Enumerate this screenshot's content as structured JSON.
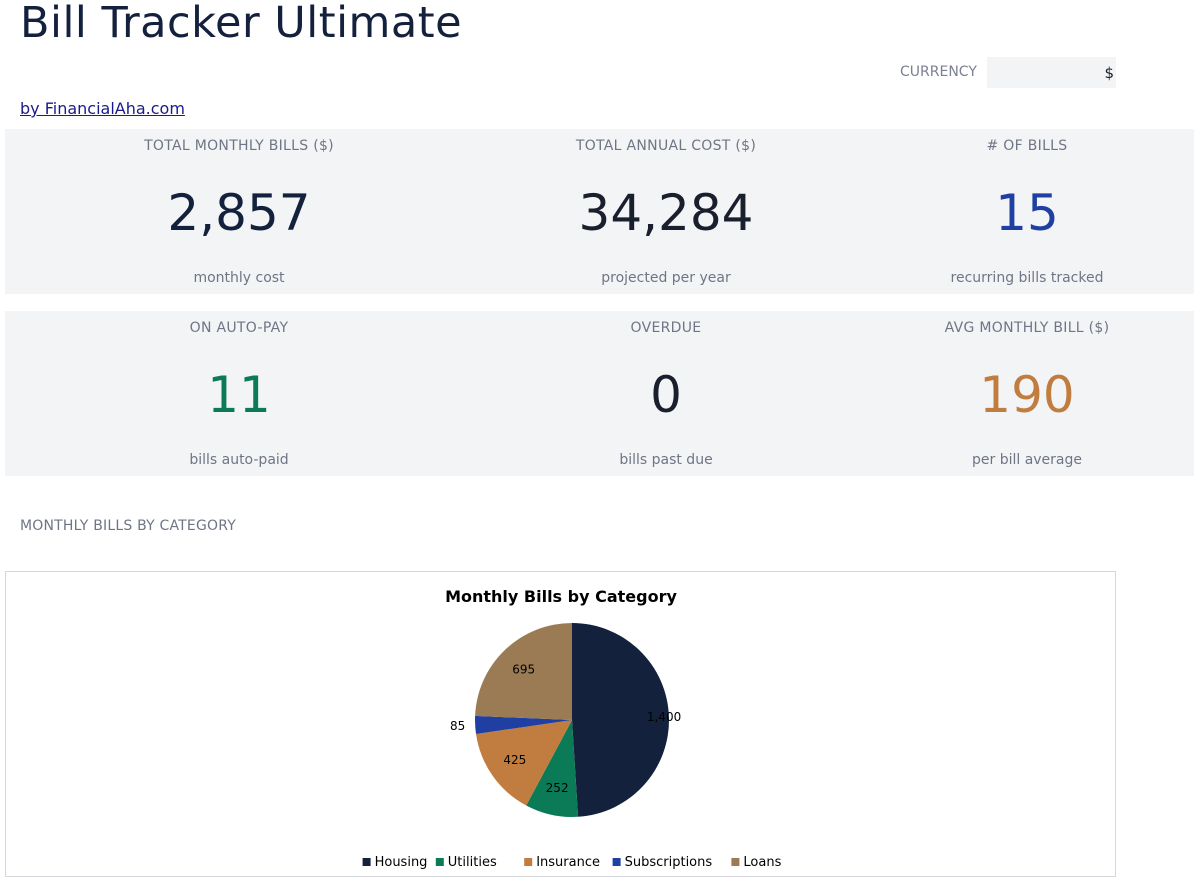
{
  "header": {
    "title": "Bill Tracker Ultimate",
    "byline": "by FinancialAha.com"
  },
  "currency": {
    "label": "CURRENCY",
    "value": "$"
  },
  "kpis": {
    "total_monthly": {
      "label": "TOTAL MONTHLY BILLS ($)",
      "value": "2,857",
      "sub": "monthly cost",
      "color": "#14213d"
    },
    "total_annual": {
      "label": "TOTAL ANNUAL COST ($)",
      "value": "34,284",
      "sub": "projected per year",
      "color": "#1a1f2e"
    },
    "num_bills": {
      "label": "# OF BILLS",
      "value": "15",
      "sub": "recurring bills tracked",
      "color": "#1f3fa3"
    },
    "auto_pay": {
      "label": "ON AUTO-PAY",
      "value": "11",
      "sub": "bills auto-paid",
      "color": "#0b7a57"
    },
    "overdue": {
      "label": "OVERDUE",
      "value": "0",
      "sub": "bills past due",
      "color": "#1a1f2e"
    },
    "avg_bill": {
      "label": "AVG MONTHLY BILL ($)",
      "value": "190",
      "sub": "per bill average",
      "color": "#c07d3f"
    }
  },
  "section": {
    "label": "MONTHLY BILLS BY CATEGORY"
  },
  "chart_data": {
    "type": "pie",
    "title": "Monthly Bills by Category",
    "categories": [
      "Housing",
      "Utilities",
      "Insurance",
      "Subscriptions",
      "Loans"
    ],
    "values": [
      1400,
      252,
      425,
      85,
      695
    ],
    "value_labels": [
      "1,400",
      "252",
      "425",
      "85",
      "695"
    ],
    "colors": [
      "#14213d",
      "#0b7a57",
      "#c07d3f",
      "#1f3fa3",
      "#9a7b53"
    ],
    "legend": "bottom"
  }
}
